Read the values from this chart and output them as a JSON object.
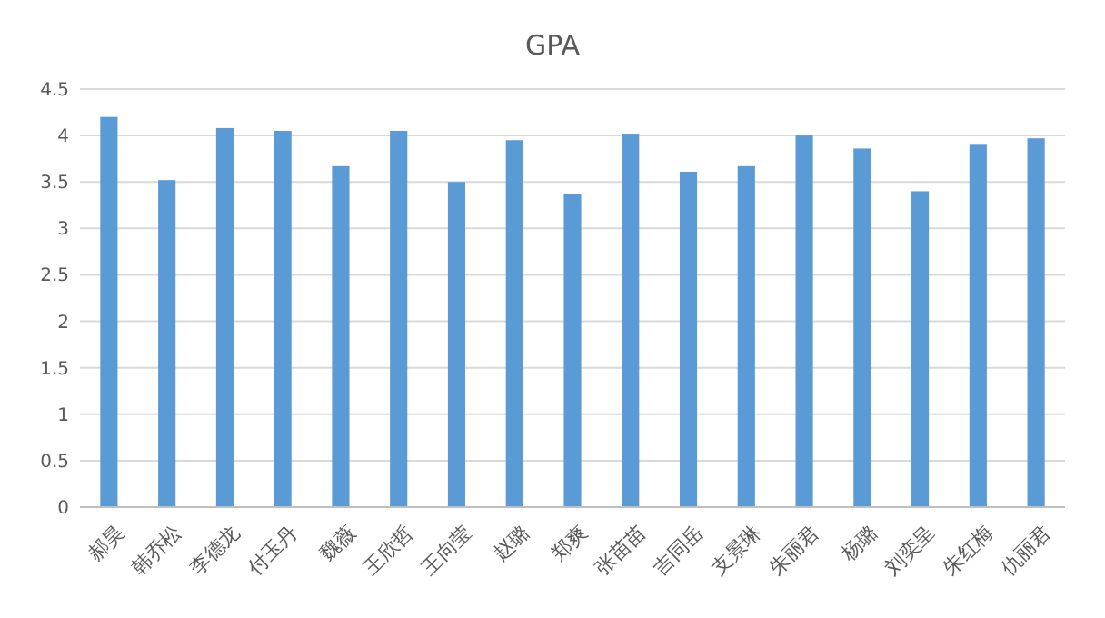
{
  "chart_data": {
    "type": "bar",
    "title": "GPA",
    "categories": [
      "郝昊",
      "韩乔松",
      "李德龙",
      "付玉丹",
      "魏薇",
      "王欣哲",
      "王向莹",
      "赵璐",
      "郑爽",
      "张苗苗",
      "吉同岳",
      "支景琳",
      "朱丽君",
      "杨璐",
      "刘奕呈",
      "朱红梅",
      "仇丽君"
    ],
    "values": [
      4.2,
      3.52,
      4.08,
      4.05,
      3.67,
      4.05,
      3.5,
      3.95,
      3.37,
      4.02,
      3.61,
      3.67,
      4.0,
      3.86,
      3.4,
      3.91,
      3.97
    ],
    "color": "#5b9bd5",
    "ylim": [
      0,
      4.5
    ],
    "yticks": [
      0,
      0.5,
      1,
      1.5,
      2,
      2.5,
      3,
      3.5,
      4,
      4.5
    ],
    "grid": "y"
  }
}
